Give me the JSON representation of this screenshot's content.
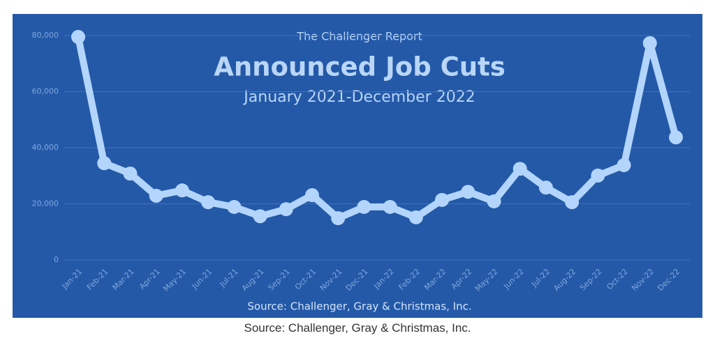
{
  "chart_data": {
    "type": "line",
    "header": "The Challenger Report",
    "title": "Announced Job Cuts",
    "subtitle": "January 2021-December 2022",
    "source": "Source: Challenger, Gray & Christmas, Inc.",
    "caption": "Source: Challenger, Gray & Christmas, Inc.",
    "categories": [
      "Jan-21",
      "Feb-21",
      "Mar-21",
      "Apr-21",
      "May-21",
      "Jun-21",
      "Jul-21",
      "Aug-21",
      "Sep-21",
      "Oct-21",
      "Nov-21",
      "Dec-21",
      "Jan-22",
      "Feb-22",
      "Mar-22",
      "Apr-22",
      "May-22",
      "Jun-22",
      "Jul-22",
      "Aug-22",
      "Sep-22",
      "Oct-22",
      "Nov-22",
      "Dec-22"
    ],
    "series": [
      {
        "name": "Announced Job Cuts",
        "color": "#b3d5fb",
        "values": [
          79500,
          34500,
          30800,
          22900,
          24800,
          20600,
          18900,
          15600,
          18100,
          23100,
          14900,
          18900,
          18900,
          15200,
          21400,
          24300,
          20900,
          32500,
          25800,
          20600,
          30100,
          33800,
          77300,
          43700
        ]
      }
    ],
    "ylim": [
      0,
      80000
    ],
    "yticks": [
      0,
      {
        "value": 20000,
        "label": "20,000"
      },
      {
        "value": 40000,
        "label": "40,000"
      },
      {
        "value": 60000,
        "label": "60,000"
      },
      {
        "value": 80000,
        "label": "80,000"
      }
    ],
    "grid": true
  }
}
